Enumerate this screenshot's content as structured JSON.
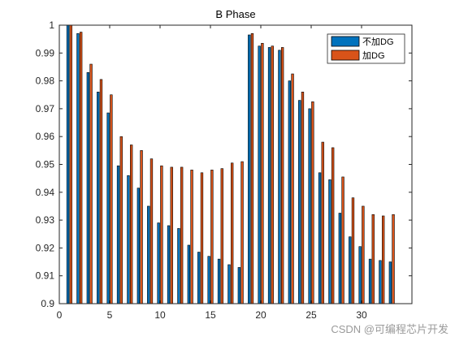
{
  "chart_data": {
    "type": "bar",
    "title": "B Phase",
    "xlabel": "",
    "ylabel": "",
    "xlim": [
      0,
      35
    ],
    "ylim": [
      0.9,
      1
    ],
    "x": [
      1,
      2,
      3,
      4,
      5,
      6,
      7,
      8,
      9,
      10,
      11,
      12,
      13,
      14,
      15,
      16,
      17,
      18,
      19,
      20,
      21,
      22,
      23,
      24,
      25,
      26,
      27,
      28,
      29,
      30,
      31,
      32,
      33
    ],
    "xticks": [
      0,
      5,
      10,
      15,
      20,
      25,
      30
    ],
    "yticks": [
      0.9,
      0.91,
      0.92,
      0.93,
      0.94,
      0.95,
      0.96,
      0.97,
      0.98,
      0.99,
      1
    ],
    "ytick_labels": [
      "0.9",
      "0.91",
      "0.92",
      "0.93",
      "0.94",
      "0.95",
      "0.96",
      "0.97",
      "0.98",
      "0.99",
      "1"
    ],
    "legend_position": "top-right",
    "series": [
      {
        "name": "不加DG",
        "color": "#0072BD",
        "values": [
          1.0,
          0.997,
          0.983,
          0.976,
          0.9685,
          0.9495,
          0.946,
          0.9415,
          0.935,
          0.929,
          0.928,
          0.927,
          0.921,
          0.9185,
          0.917,
          0.916,
          0.914,
          0.913,
          0.9965,
          0.9925,
          0.992,
          0.991,
          0.98,
          0.973,
          0.97,
          0.947,
          0.9445,
          0.9325,
          0.924,
          0.9205,
          0.916,
          0.9155,
          0.915
        ]
      },
      {
        "name": "加DG",
        "color": "#D95319",
        "values": [
          1.0,
          0.9975,
          0.986,
          0.9805,
          0.975,
          0.96,
          0.957,
          0.955,
          0.952,
          0.9495,
          0.949,
          0.949,
          0.948,
          0.947,
          0.948,
          0.9485,
          0.9505,
          0.951,
          0.997,
          0.9935,
          0.9925,
          0.992,
          0.9825,
          0.976,
          0.9725,
          0.958,
          0.956,
          0.9455,
          0.938,
          0.935,
          0.932,
          0.9315,
          0.932
        ]
      }
    ]
  },
  "watermark": "CSDN @可编程芯片开发"
}
